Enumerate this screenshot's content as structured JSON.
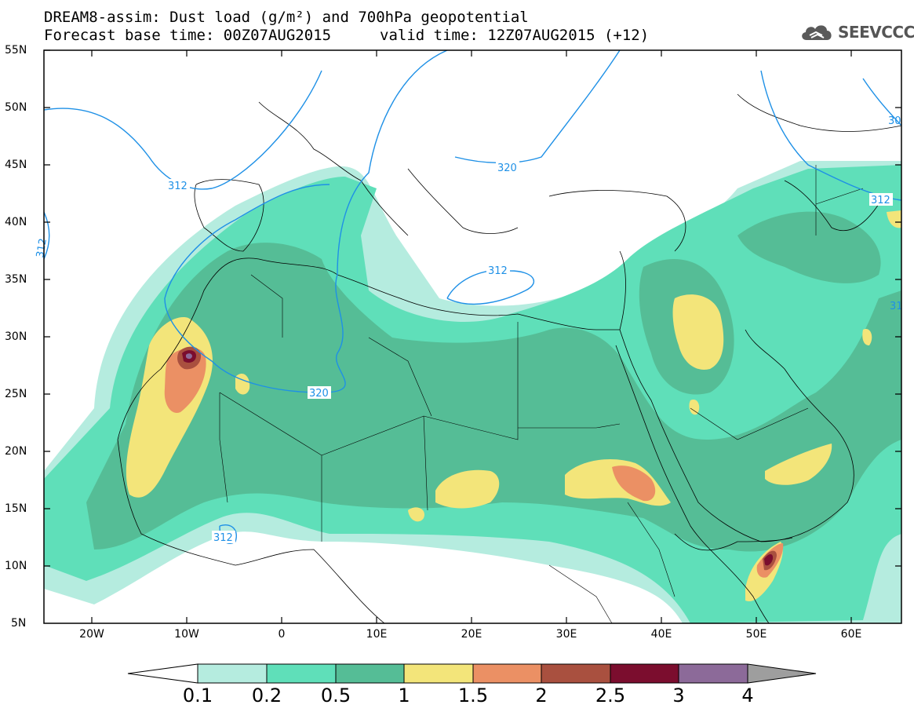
{
  "title": {
    "line1": "DREAM8-assim: Dust load (g/m²) and 700hPa geopotential",
    "line2": "Forecast base time: 00Z07AUG2015",
    "valid": "valid time: 12Z07AUG2015 (+12)"
  },
  "logo": {
    "icon": "cloud-icon",
    "text": "SEEVCCC"
  },
  "axes": {
    "lat_labels": [
      "55N",
      "50N",
      "45N",
      "40N",
      "35N",
      "30N",
      "25N",
      "20N",
      "15N",
      "10N",
      "5N"
    ],
    "lon_labels": [
      "20W",
      "10W",
      "0",
      "10E",
      "20E",
      "30E",
      "40E",
      "50E",
      "60E"
    ]
  },
  "contours": {
    "labels": [
      "312",
      "320",
      "312",
      "312",
      "320",
      "312",
      "312",
      "30",
      "31"
    ]
  },
  "colorbar": {
    "levels": [
      "0.1",
      "0.2",
      "0.5",
      "1",
      "1.5",
      "2",
      "2.5",
      "3",
      "4"
    ],
    "colors": [
      "#ffffff",
      "#b5ecdf",
      "#5fdfb9",
      "#55bd96",
      "#f3e57a",
      "#eb9064",
      "#a9503f",
      "#7b0d2e",
      "#8c6a99",
      "#9e9e9e"
    ]
  }
}
